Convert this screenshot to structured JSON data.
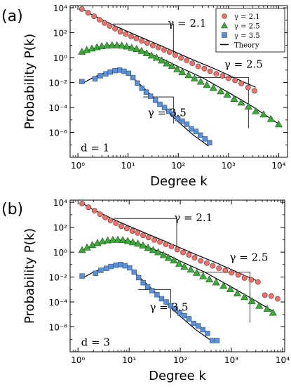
{
  "figure": {
    "legend_entries": [
      {
        "marker": "circle",
        "color": "#e8736c",
        "label": "γ = 2.1"
      },
      {
        "marker": "triangle",
        "color": "#3da93a",
        "label": "γ = 2.5"
      },
      {
        "marker": "square",
        "color": "#5b8fd6",
        "label": "γ = 3.5"
      },
      {
        "marker": "line",
        "color": "#000000",
        "label": "Theory"
      }
    ]
  },
  "chart_data": [
    {
      "type": "scatter",
      "panel_label": "(a)",
      "xlabel": "Degree k",
      "ylabel": "Probability P(k)",
      "x_scale": "log",
      "y_scale": "log",
      "xlim": [
        0.7,
        15000
      ],
      "ylim": [
        1e-08,
        15000
      ],
      "x_ticks": [
        {
          "v": 1,
          "label": "10⁰"
        },
        {
          "v": 10,
          "label": "10¹"
        },
        {
          "v": 100,
          "label": "10²"
        },
        {
          "v": 1000,
          "label": "10³"
        },
        {
          "v": 10000,
          "label": "10⁴"
        }
      ],
      "y_ticks": [
        {
          "v": 1e-06,
          "label": "10⁻⁶"
        },
        {
          "v": 0.0001,
          "label": "10⁻⁴"
        },
        {
          "v": 0.01,
          "label": "10⁻²"
        },
        {
          "v": 1,
          "label": "10⁰"
        },
        {
          "v": 100,
          "label": "10²"
        },
        {
          "v": 10000,
          "label": "10⁴"
        }
      ],
      "legend": "top-right",
      "grid": false,
      "annotations": [
        {
          "text": "γ = 2.1",
          "x": 150,
          "y": 300
        },
        {
          "text": "γ = 2.5",
          "x": 2000,
          "y": 0.15
        },
        {
          "text": "γ = 3.5",
          "x": 60,
          "y": 2e-05
        },
        {
          "text": "d = 1",
          "x": 2.2,
          "y": 3e-08
        }
      ],
      "slope_triangles": [
        {
          "x1": 5,
          "x2": 80,
          "y1": 500,
          "y2": 1.6
        },
        {
          "x1": 150,
          "x2": 2500,
          "y1": 0.025,
          "y2": 2.1e-06
        },
        {
          "x1": 20,
          "x2": 80,
          "y1": 0.0007,
          "y2": 5.2e-06
        }
      ],
      "series": [
        {
          "label": "γ = 2.1",
          "marker": "circle",
          "color": "#e8736c",
          "x": [
            1.2,
            1.6,
            2.1,
            2.7,
            3.4,
            4.3,
            5.5,
            7,
            9,
            11.5,
            14.6,
            18.7,
            24,
            31,
            40,
            52,
            67,
            87,
            113,
            147,
            190,
            250,
            330,
            430,
            570,
            760,
            1000,
            1350,
            1800,
            2450,
            3300
          ],
          "y": [
            8000,
            4000,
            2100,
            1100,
            600,
            350,
            210,
            120,
            80,
            50,
            35,
            22,
            15,
            9.5,
            6.5,
            4.2,
            2.8,
            1.6,
            0.95,
            0.6,
            0.35,
            0.2,
            0.13,
            0.08,
            0.05,
            0.034,
            0.022,
            0.015,
            0.0085,
            0.004,
            0.0022
          ],
          "theory_x": [
            1.2,
            2,
            5,
            10,
            20,
            50,
            100,
            200,
            500,
            1000,
            2000,
            3500
          ],
          "theory_y": [
            8500,
            2500,
            420,
            120,
            36,
            7.5,
            2.2,
            0.65,
            0.14,
            0.04,
            0.011,
            0.0042
          ]
        },
        {
          "label": "γ = 2.5",
          "marker": "triangle",
          "color": "#3da93a",
          "x": [
            1.2,
            1.5,
            1.9,
            2.4,
            3,
            3.8,
            4.8,
            6,
            7.5,
            9.4,
            11.8,
            14.8,
            18.6,
            23.4,
            29.4,
            37,
            47,
            59,
            75,
            95,
            120,
            160,
            210,
            280,
            370,
            500,
            700,
            950,
            1300,
            1800,
            2500,
            3500,
            5000,
            7000,
            10000
          ],
          "y": [
            3,
            4.2,
            5.5,
            7,
            8.5,
            9.5,
            10,
            10,
            9.5,
            8,
            6.3,
            5,
            3.5,
            2.3,
            1.5,
            1,
            0.6,
            0.35,
            0.22,
            0.12,
            0.07,
            0.04,
            0.022,
            0.012,
            0.0065,
            0.0038,
            0.002,
            0.0011,
            0.0005,
            0.00025,
            0.00012,
            5e-05,
            2.8e-05,
            1.2e-05,
            4.5e-06
          ],
          "theory_x": [
            1.2,
            2,
            4,
            6,
            10,
            20,
            50,
            100,
            300,
            1000,
            3000,
            10000
          ],
          "theory_y": [
            2.5,
            5.5,
            9,
            9.8,
            8,
            3.3,
            0.75,
            0.19,
            0.025,
            0.0016,
            0.00012,
            4.8e-06
          ]
        },
        {
          "label": "γ = 3.5",
          "marker": "square",
          "color": "#5b8fd6",
          "x": [
            1.2,
            2.2,
            2.8,
            3.6,
            4.4,
            5.5,
            6.8,
            8.3,
            10.2,
            12.5,
            15.3,
            18.8,
            23,
            28,
            35,
            43,
            53,
            65,
            80,
            98,
            120,
            148,
            182,
            225,
            275,
            340,
            420
          ],
          "y": [
            0.012,
            0.02,
            0.035,
            0.05,
            0.07,
            0.09,
            0.1,
            0.08,
            0.055,
            0.025,
            0.009,
            0.0035,
            0.0017,
            0.0008,
            0.00038,
            0.00018,
            0.0001,
            5e-05,
            2.8e-05,
            1.3e-05,
            8e-06,
            4.5e-06,
            1.9e-06,
            1.2e-06,
            6e-07,
            3e-07,
            1.5e-07
          ],
          "theory_x": [
            1.2,
            2,
            3,
            5,
            7,
            10,
            15,
            25,
            50,
            100,
            200,
            400
          ],
          "theory_y": [
            0.008,
            0.025,
            0.05,
            0.085,
            0.09,
            0.06,
            0.012,
            0.0017,
            0.0001,
            7e-06,
            6e-07,
            8e-08
          ]
        }
      ]
    },
    {
      "type": "scatter",
      "panel_label": "(b)",
      "xlabel": "Degree k",
      "ylabel": "Probability P(k)",
      "x_scale": "log",
      "y_scale": "log",
      "xlim": [
        0.7,
        11000
      ],
      "ylim": [
        1e-08,
        15000
      ],
      "x_ticks": [
        {
          "v": 1,
          "label": "10⁰"
        },
        {
          "v": 10,
          "label": "10¹"
        },
        {
          "v": 100,
          "label": "10²"
        },
        {
          "v": 1000,
          "label": "10³"
        },
        {
          "v": 10000,
          "label": "10⁴"
        }
      ],
      "y_ticks": [
        {
          "v": 1e-06,
          "label": "10⁻⁶"
        },
        {
          "v": 0.0001,
          "label": "10⁻⁴"
        },
        {
          "v": 0.01,
          "label": "10⁻²"
        },
        {
          "v": 1,
          "label": "10⁰"
        },
        {
          "v": 100,
          "label": "10²"
        },
        {
          "v": 10000,
          "label": "10⁴"
        }
      ],
      "grid": false,
      "annotations": [
        {
          "text": "γ = 2.1",
          "x": 180,
          "y": 300
        },
        {
          "text": "γ = 2.5",
          "x": 2200,
          "y": 0.2
        },
        {
          "text": "γ = 3.5",
          "x": 60,
          "y": 2e-05
        },
        {
          "text": "d = 3",
          "x": 2.2,
          "y": 3e-08
        }
      ],
      "slope_triangles": [
        {
          "x1": 5,
          "x2": 85,
          "y1": 500,
          "y2": 1.2
        },
        {
          "x1": 150,
          "x2": 2300,
          "y1": 0.025,
          "y2": 2.1e-06
        },
        {
          "x1": 15,
          "x2": 65,
          "y1": 0.001,
          "y2": 5.2e-06
        }
      ],
      "series": [
        {
          "label": "γ = 2.1",
          "marker": "circle",
          "color": "#e8736c",
          "x": [
            1.2,
            1.6,
            2.1,
            2.7,
            3.4,
            4.3,
            5.5,
            7,
            9,
            11.5,
            14.6,
            18.7,
            24,
            31,
            40,
            52,
            67,
            87,
            113,
            147,
            190,
            250,
            330,
            430,
            570,
            760,
            1000,
            1350,
            1800,
            2450,
            3300,
            4500,
            6000,
            8000
          ],
          "y": [
            8000,
            4000,
            2100,
            1100,
            600,
            350,
            210,
            120,
            80,
            50,
            35,
            22,
            15,
            9.5,
            6.5,
            4.2,
            2.8,
            1.6,
            0.95,
            0.6,
            0.35,
            0.2,
            0.13,
            0.08,
            0.05,
            0.034,
            0.022,
            0.015,
            0.0085,
            0.006,
            0.004,
            0.00035,
            0.0003,
            0.00018
          ],
          "theory_x": [
            1.2,
            2,
            5,
            10,
            20,
            50,
            100,
            200,
            500,
            1000,
            2000,
            3500
          ],
          "theory_y": [
            8500,
            2500,
            420,
            120,
            36,
            7.5,
            2.2,
            0.65,
            0.14,
            0.04,
            0.011,
            0.0042
          ]
        },
        {
          "label": "γ = 2.5",
          "marker": "triangle",
          "color": "#3da93a",
          "x": [
            1.2,
            1.5,
            1.9,
            2.4,
            3,
            3.8,
            4.8,
            6,
            7.5,
            9.4,
            11.8,
            14.8,
            18.6,
            23.4,
            29.4,
            37,
            47,
            59,
            75,
            95,
            120,
            160,
            210,
            280,
            370,
            500,
            700,
            950,
            1300,
            1800,
            2500,
            3500,
            5000,
            6500
          ],
          "y": [
            1.5,
            2.4,
            3.8,
            5.5,
            7.5,
            9,
            10,
            10,
            9.5,
            8,
            6.3,
            5,
            3.5,
            2.3,
            1.5,
            1,
            0.6,
            0.35,
            0.22,
            0.12,
            0.07,
            0.04,
            0.022,
            0.012,
            0.0065,
            0.0038,
            0.002,
            0.0011,
            0.0005,
            0.00025,
            0.00012,
            5e-05,
            2.8e-05,
            1.4e-05
          ],
          "theory_x": [
            1.2,
            2,
            4,
            6,
            10,
            20,
            50,
            100,
            300,
            1000,
            3000,
            7000
          ],
          "theory_y": [
            1.3,
            4,
            8.5,
            9.8,
            8,
            3.3,
            0.75,
            0.19,
            0.025,
            0.0016,
            0.00012,
            1.5e-05
          ]
        },
        {
          "label": "γ = 3.5",
          "marker": "square",
          "color": "#5b8fd6",
          "x": [
            1.2,
            2.2,
            2.8,
            3.6,
            4.4,
            5.5,
            6.8,
            8.3,
            10.2,
            12.5,
            15.3,
            18.8,
            23,
            28,
            35,
            43,
            53,
            65,
            80,
            98,
            120,
            148,
            182,
            225,
            275,
            340,
            420,
            520
          ],
          "y": [
            0.012,
            0.02,
            0.035,
            0.05,
            0.07,
            0.09,
            0.1,
            0.08,
            0.055,
            0.025,
            0.009,
            0.0035,
            0.0017,
            0.0008,
            0.00038,
            0.00018,
            0.0001,
            5e-05,
            2.8e-05,
            1.3e-05,
            8e-06,
            4.5e-06,
            1.9e-06,
            1.2e-06,
            6e-07,
            3e-07,
            8e-08,
            8e-08
          ],
          "theory_x": [
            1.2,
            2,
            3,
            5,
            7,
            10,
            15,
            25,
            50,
            100,
            200,
            400
          ],
          "theory_y": [
            0.008,
            0.025,
            0.05,
            0.085,
            0.09,
            0.06,
            0.012,
            0.0017,
            0.0001,
            7e-06,
            6e-07,
            8e-08
          ]
        }
      ]
    }
  ]
}
